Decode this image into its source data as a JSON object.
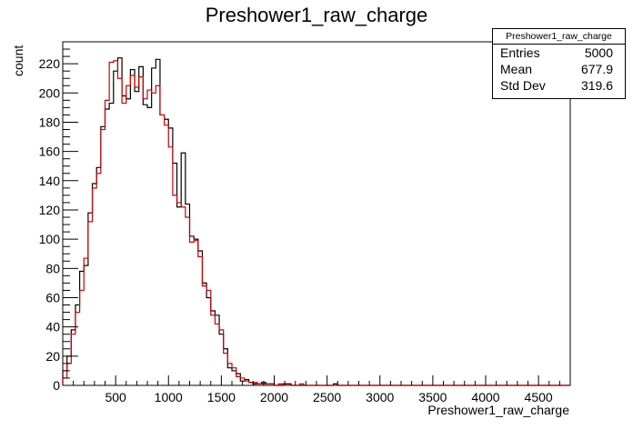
{
  "chart_data": {
    "type": "histogram",
    "title": "Preshower1_raw_charge",
    "xlabel": "Preshower1_raw_charge",
    "ylabel": "count",
    "xlim": [
      0,
      4800
    ],
    "ylim": [
      0,
      235
    ],
    "x_ticks": [
      500,
      1000,
      1500,
      2000,
      2500,
      3000,
      3500,
      4000,
      4500
    ],
    "y_ticks": [
      0,
      20,
      40,
      60,
      80,
      100,
      120,
      140,
      160,
      180,
      200,
      220
    ],
    "bin_width": 40,
    "bin_start": 0,
    "grid": false,
    "series": [
      {
        "color": "#000000",
        "values": [
          10,
          20,
          38,
          55,
          78,
          82,
          118,
          138,
          149,
          177,
          189,
          193,
          215,
          224,
          198,
          196,
          216,
          201,
          218,
          192,
          190,
          217,
          223,
          185,
          182,
          176,
          152,
          122,
          159,
          124,
          102,
          100,
          92,
          70,
          60,
          51,
          48,
          35,
          25,
          12,
          10,
          8,
          3,
          4,
          2,
          1,
          1,
          2,
          1,
          1,
          0,
          0,
          1,
          1,
          0,
          0,
          0,
          0,
          0,
          0,
          0,
          0,
          0,
          0,
          1,
          0,
          0,
          0,
          0,
          0,
          0,
          0,
          0,
          0,
          0,
          0,
          0,
          0,
          0,
          0,
          0,
          0,
          0,
          0,
          0,
          0,
          0,
          0,
          0,
          0,
          0,
          0,
          0,
          0,
          0,
          0,
          0,
          0,
          0,
          0,
          0,
          0,
          0,
          0,
          0,
          0,
          0,
          0,
          0,
          0,
          0,
          0,
          0,
          0,
          0,
          0,
          0,
          0,
          0,
          0
        ]
      },
      {
        "color": "#cc0000",
        "values": [
          5,
          15,
          35,
          50,
          65,
          87,
          112,
          135,
          145,
          175,
          195,
          221,
          222,
          210,
          193,
          205,
          212,
          204,
          211,
          196,
          202,
          200,
          205,
          185,
          178,
          163,
          130,
          125,
          122,
          115,
          98,
          99,
          88,
          68,
          65,
          48,
          42,
          38,
          22,
          15,
          12,
          6,
          5,
          3,
          2,
          2,
          1,
          1,
          1,
          1,
          0,
          1,
          0,
          0,
          0,
          0,
          1,
          0,
          0,
          0,
          0,
          0,
          0,
          0,
          0,
          0,
          0,
          0,
          0,
          0,
          0,
          0,
          0,
          0,
          0,
          0,
          0,
          0,
          0,
          0,
          0,
          0,
          0,
          0,
          0,
          0,
          0,
          0,
          0,
          0,
          0,
          0,
          0,
          0,
          0,
          0,
          0,
          0,
          0,
          0,
          0,
          0,
          0,
          0,
          0,
          0,
          0,
          0,
          0,
          0,
          0,
          0,
          0,
          0,
          0,
          0,
          0,
          0,
          0,
          0
        ]
      }
    ],
    "stats_box": {
      "name": "Preshower1_raw_charge",
      "entries_label": "Entries",
      "entries": "5000",
      "mean_label": "Mean",
      "mean": "677.9",
      "stddev_label": "Std Dev",
      "stddev": "319.6"
    }
  }
}
